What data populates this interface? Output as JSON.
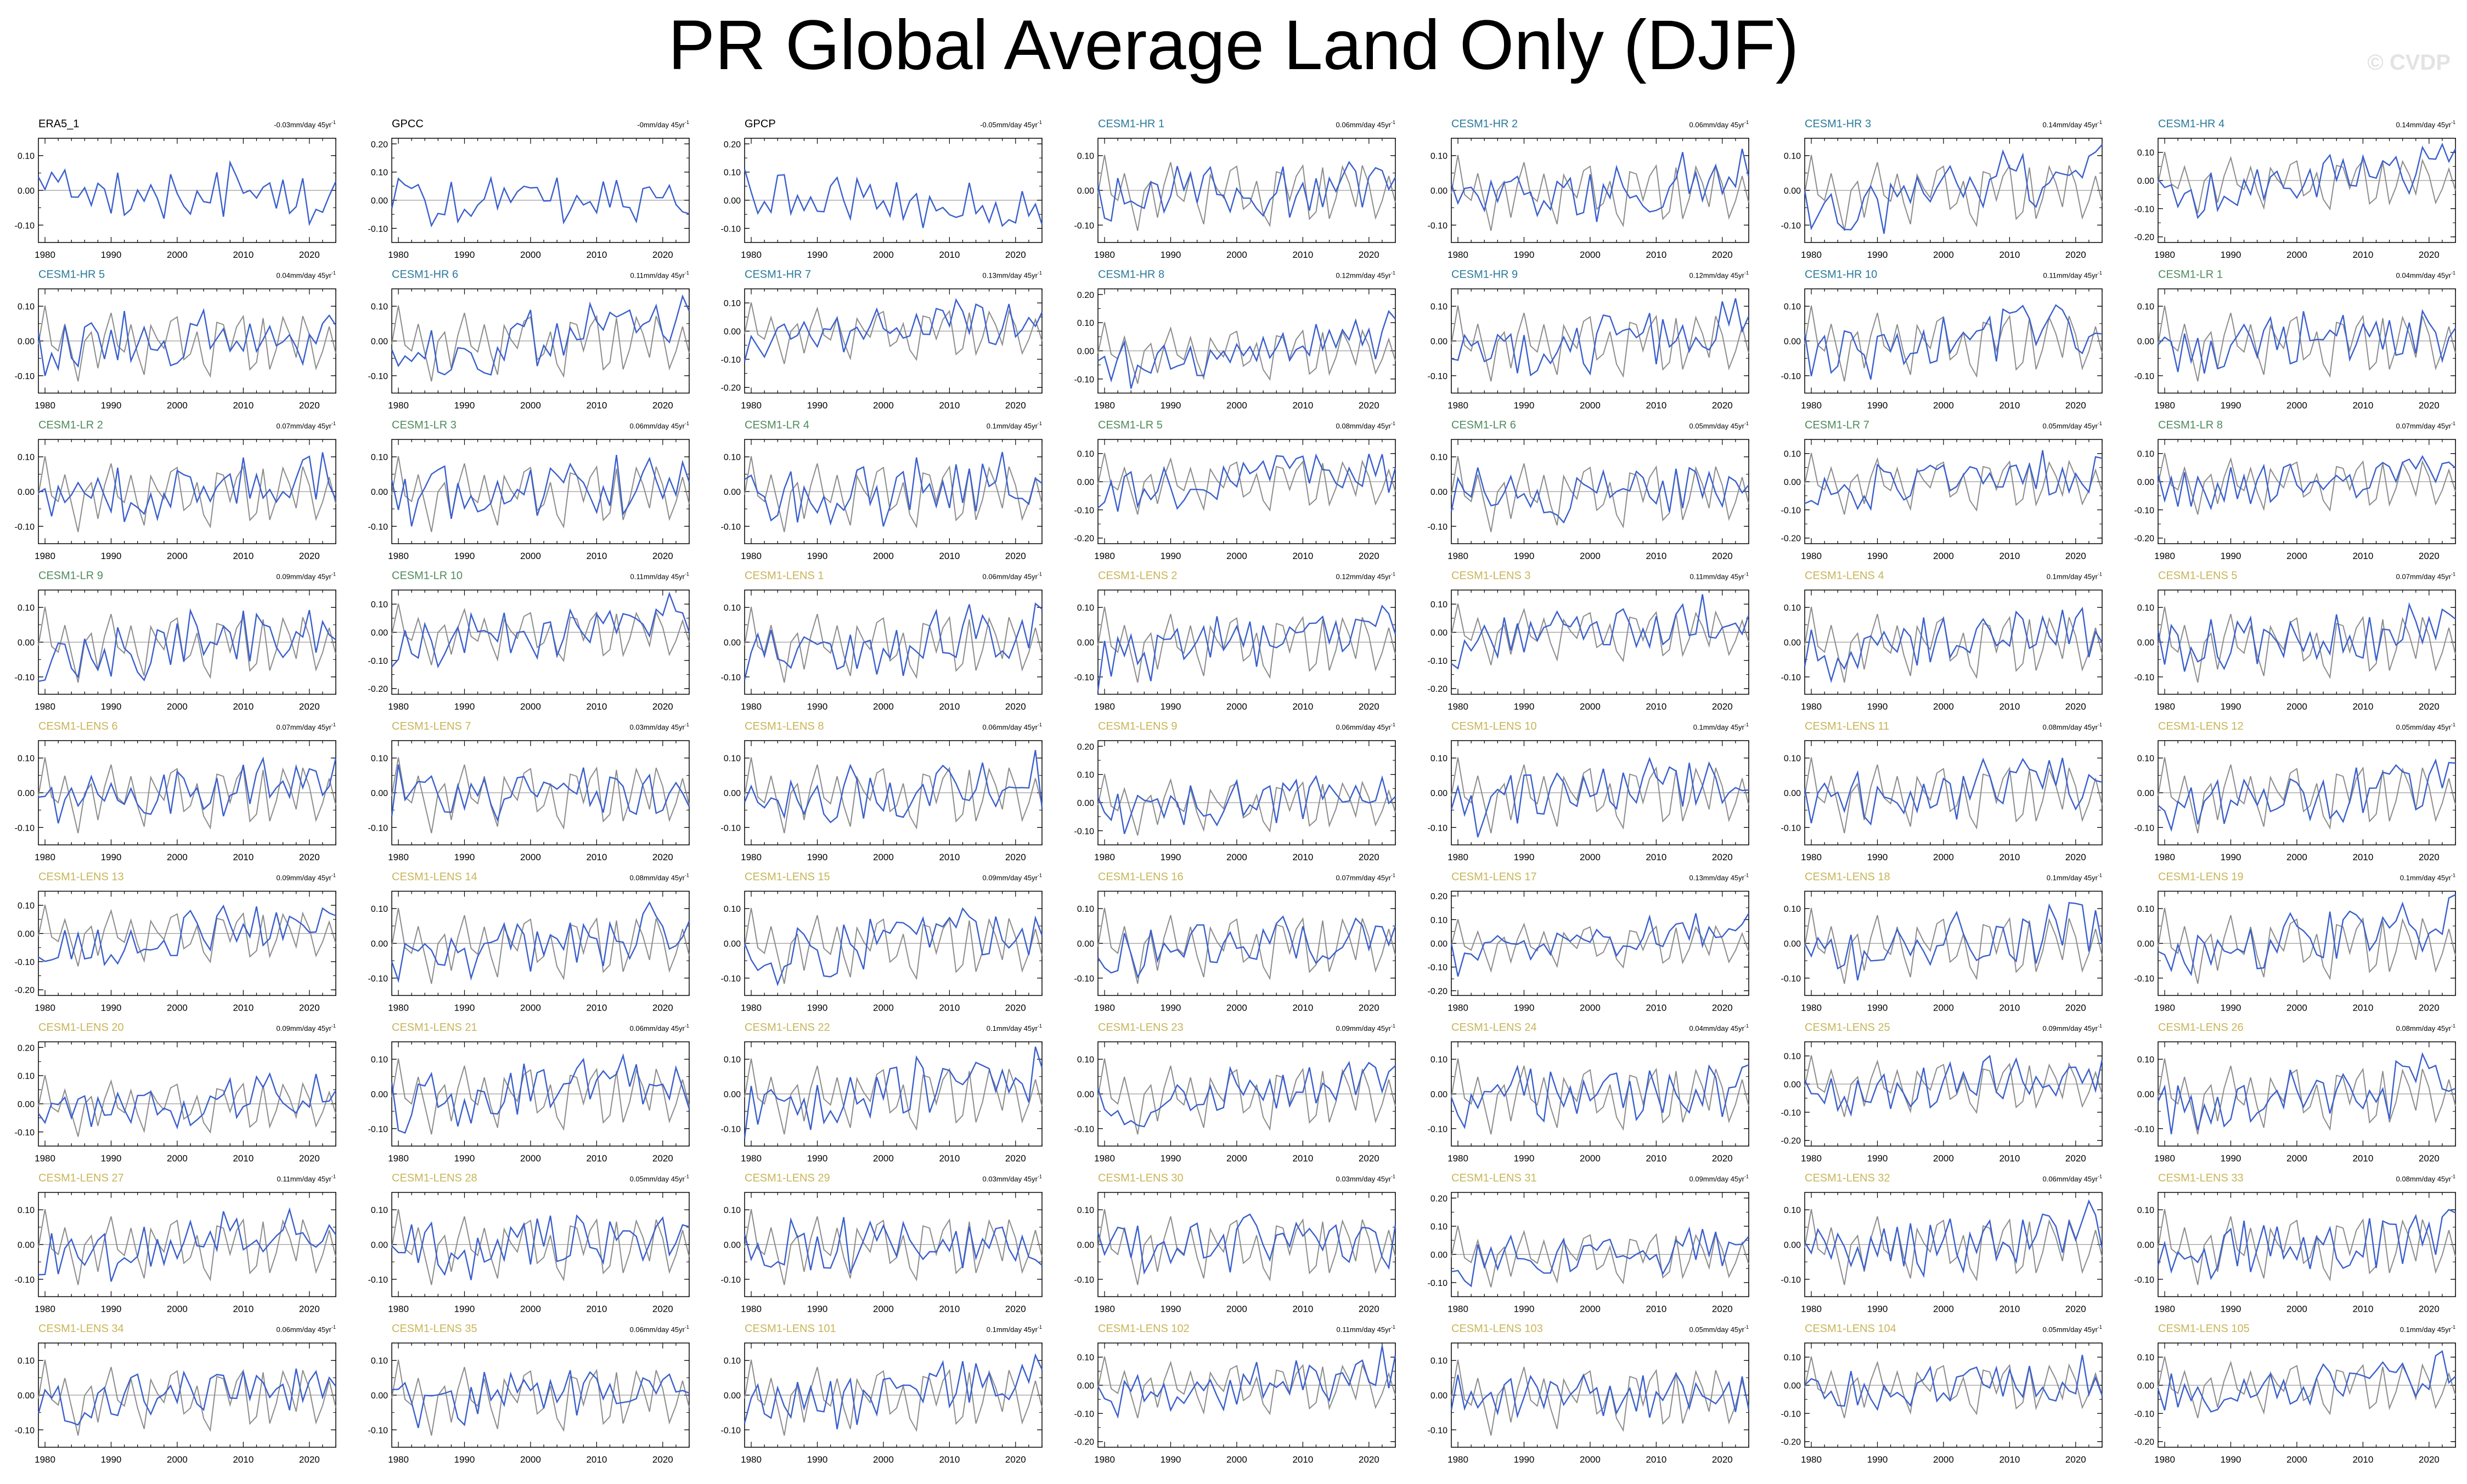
{
  "title": "PR Global Average Land Only (DJF)",
  "watermark": "© CVDP",
  "colors": {
    "obs_line": "#3a5fcd",
    "ref_line": "#8c8c8c",
    "zero_line": "#9a9a9a",
    "label_obs": "#000000",
    "label_hr": "#2a7a9a",
    "label_lr": "#4f8a5b",
    "label_lens": "#c8b458"
  },
  "chart_data": {
    "type": "line",
    "x_range": [
      1979,
      2024
    ],
    "x_ticks": [
      1980,
      1990,
      2000,
      2010,
      2020
    ],
    "grid": false,
    "series_colors": {
      "model": "#3a5fcd",
      "observations": "#8c8c8c"
    },
    "panels": [
      {
        "name": "ERA5_1",
        "group": "obs",
        "trend": "-0.03mm/day 45yr",
        "ylim": [
          -0.15,
          0.15
        ],
        "yticks": [
          "0.10",
          "0.00",
          "-0.10"
        ]
      },
      {
        "name": "GPCC",
        "group": "obs",
        "trend": "-0mm/day 45yr",
        "ylim": [
          -0.15,
          0.22
        ],
        "yticks": [
          "0.20",
          "0.10",
          "0.00",
          "-0.10"
        ]
      },
      {
        "name": "GPCP",
        "group": "obs",
        "trend": "-0.05mm/day 45yr",
        "ylim": [
          -0.15,
          0.22
        ],
        "yticks": [
          "0.20",
          "0.10",
          "0.00",
          "-0.10"
        ]
      },
      {
        "name": "CESM1-HR 1",
        "group": "hr",
        "trend": "0.06mm/day 45yr",
        "ylim": [
          -0.15,
          0.15
        ],
        "yticks": [
          "0.10",
          "0.00",
          "-0.10"
        ]
      },
      {
        "name": "CESM1-HR 2",
        "group": "hr",
        "trend": "0.06mm/day 45yr",
        "ylim": [
          -0.15,
          0.15
        ],
        "yticks": [
          "0.10",
          "0.00",
          "-0.10"
        ]
      },
      {
        "name": "CESM1-HR 3",
        "group": "hr",
        "trend": "0.14mm/day 45yr",
        "ylim": [
          -0.15,
          0.15
        ],
        "yticks": [
          "0.10",
          "0.00",
          "-0.10"
        ]
      },
      {
        "name": "CESM1-HR 4",
        "group": "hr",
        "trend": "0.14mm/day 45yr",
        "ylim": [
          -0.22,
          0.15
        ],
        "yticks": [
          "0.10",
          "0.00",
          "-0.10",
          "-0.20"
        ]
      },
      {
        "name": "CESM1-HR 5",
        "group": "hr",
        "trend": "0.04mm/day 45yr",
        "ylim": [
          -0.15,
          0.15
        ],
        "yticks": [
          "0.10",
          "0.00",
          "-0.10"
        ]
      },
      {
        "name": "CESM1-HR 6",
        "group": "hr",
        "trend": "0.11mm/day 45yr",
        "ylim": [
          -0.15,
          0.15
        ],
        "yticks": [
          "0.10",
          "0.00",
          "-0.10"
        ]
      },
      {
        "name": "CESM1-HR 7",
        "group": "hr",
        "trend": "0.13mm/day 45yr",
        "ylim": [
          -0.22,
          0.15
        ],
        "yticks": [
          "0.10",
          "0.00",
          "-0.10",
          "-0.20"
        ]
      },
      {
        "name": "CESM1-HR 8",
        "group": "hr",
        "trend": "0.12mm/day 45yr",
        "ylim": [
          -0.15,
          0.22
        ],
        "yticks": [
          "0.20",
          "0.10",
          "0.00",
          "-0.10"
        ]
      },
      {
        "name": "CESM1-HR 9",
        "group": "hr",
        "trend": "0.12mm/day 45yr",
        "ylim": [
          -0.15,
          0.15
        ],
        "yticks": [
          "0.10",
          "0.00",
          "-0.10"
        ]
      },
      {
        "name": "CESM1-HR 10",
        "group": "hr",
        "trend": "0.11mm/day 45yr",
        "ylim": [
          -0.15,
          0.15
        ],
        "yticks": [
          "0.10",
          "0.00",
          "-0.10"
        ]
      },
      {
        "name": "CESM1-LR 1",
        "group": "lr",
        "trend": "0.04mm/day 45yr",
        "ylim": [
          -0.15,
          0.15
        ],
        "yticks": [
          "0.10",
          "0.00",
          "-0.10"
        ]
      },
      {
        "name": "CESM1-LR 2",
        "group": "lr",
        "trend": "0.07mm/day 45yr",
        "ylim": [
          -0.15,
          0.15
        ],
        "yticks": [
          "0.10",
          "0.00",
          "-0.10"
        ]
      },
      {
        "name": "CESM1-LR 3",
        "group": "lr",
        "trend": "0.06mm/day 45yr",
        "ylim": [
          -0.15,
          0.15
        ],
        "yticks": [
          "0.10",
          "0.00",
          "-0.10"
        ]
      },
      {
        "name": "CESM1-LR 4",
        "group": "lr",
        "trend": "0.1mm/day 45yr",
        "ylim": [
          -0.15,
          0.15
        ],
        "yticks": [
          "0.10",
          "0.00",
          "-0.10"
        ]
      },
      {
        "name": "CESM1-LR 5",
        "group": "lr",
        "trend": "0.08mm/day 45yr",
        "ylim": [
          -0.22,
          0.15
        ],
        "yticks": [
          "0.10",
          "0.00",
          "-0.10",
          "-0.20"
        ]
      },
      {
        "name": "CESM1-LR 6",
        "group": "lr",
        "trend": "0.05mm/day 45yr",
        "ylim": [
          -0.15,
          0.15
        ],
        "yticks": [
          "0.10",
          "0.00",
          "-0.10"
        ]
      },
      {
        "name": "CESM1-LR 7",
        "group": "lr",
        "trend": "0.05mm/day 45yr",
        "ylim": [
          -0.22,
          0.15
        ],
        "yticks": [
          "0.10",
          "0.00",
          "-0.10",
          "-0.20"
        ]
      },
      {
        "name": "CESM1-LR 8",
        "group": "lr",
        "trend": "0.07mm/day 45yr",
        "ylim": [
          -0.22,
          0.15
        ],
        "yticks": [
          "0.10",
          "0.00",
          "-0.10",
          "-0.20"
        ]
      },
      {
        "name": "CESM1-LR 9",
        "group": "lr",
        "trend": "0.09mm/day 45yr",
        "ylim": [
          -0.15,
          0.15
        ],
        "yticks": [
          "0.10",
          "0.00",
          "-0.10"
        ]
      },
      {
        "name": "CESM1-LR 10",
        "group": "lr",
        "trend": "0.11mm/day 45yr",
        "ylim": [
          -0.22,
          0.15
        ],
        "yticks": [
          "0.10",
          "0.00",
          "-0.10",
          "-0.20"
        ]
      },
      {
        "name": "CESM1-LENS 1",
        "group": "lens",
        "trend": "0.06mm/day 45yr",
        "ylim": [
          -0.15,
          0.15
        ],
        "yticks": [
          "0.10",
          "0.00",
          "-0.10"
        ]
      },
      {
        "name": "CESM1-LENS 2",
        "group": "lens",
        "trend": "0.12mm/day 45yr",
        "ylim": [
          -0.15,
          0.15
        ],
        "yticks": [
          "0.10",
          "0.00",
          "-0.10"
        ]
      },
      {
        "name": "CESM1-LENS 3",
        "group": "lens",
        "trend": "0.11mm/day 45yr",
        "ylim": [
          -0.22,
          0.15
        ],
        "yticks": [
          "0.10",
          "0.00",
          "-0.10",
          "-0.20"
        ]
      },
      {
        "name": "CESM1-LENS 4",
        "group": "lens",
        "trend": "0.1mm/day 45yr",
        "ylim": [
          -0.15,
          0.15
        ],
        "yticks": [
          "0.10",
          "0.00",
          "-0.10"
        ]
      },
      {
        "name": "CESM1-LENS 5",
        "group": "lens",
        "trend": "0.07mm/day 45yr",
        "ylim": [
          -0.15,
          0.15
        ],
        "yticks": [
          "0.10",
          "0.00",
          "-0.10"
        ]
      },
      {
        "name": "CESM1-LENS 6",
        "group": "lens",
        "trend": "0.07mm/day 45yr",
        "ylim": [
          -0.15,
          0.15
        ],
        "yticks": [
          "0.10",
          "0.00",
          "-0.10"
        ]
      },
      {
        "name": "CESM1-LENS 7",
        "group": "lens",
        "trend": "0.03mm/day 45yr",
        "ylim": [
          -0.15,
          0.15
        ],
        "yticks": [
          "0.10",
          "0.00",
          "-0.10"
        ]
      },
      {
        "name": "CESM1-LENS 8",
        "group": "lens",
        "trend": "0.06mm/day 45yr",
        "ylim": [
          -0.15,
          0.15
        ],
        "yticks": [
          "0.10",
          "0.00",
          "-0.10"
        ]
      },
      {
        "name": "CESM1-LENS 9",
        "group": "lens",
        "trend": "0.06mm/day 45yr",
        "ylim": [
          -0.15,
          0.22
        ],
        "yticks": [
          "0.20",
          "0.10",
          "0.00",
          "-0.10"
        ]
      },
      {
        "name": "CESM1-LENS 10",
        "group": "lens",
        "trend": "0.1mm/day 45yr",
        "ylim": [
          -0.15,
          0.15
        ],
        "yticks": [
          "0.10",
          "0.00",
          "-0.10"
        ]
      },
      {
        "name": "CESM1-LENS 11",
        "group": "lens",
        "trend": "0.08mm/day 45yr",
        "ylim": [
          -0.15,
          0.15
        ],
        "yticks": [
          "0.10",
          "0.00",
          "-0.10"
        ]
      },
      {
        "name": "CESM1-LENS 12",
        "group": "lens",
        "trend": "0.05mm/day 45yr",
        "ylim": [
          -0.15,
          0.15
        ],
        "yticks": [
          "0.10",
          "0.00",
          "-0.10"
        ]
      },
      {
        "name": "CESM1-LENS 13",
        "group": "lens",
        "trend": "0.09mm/day 45yr",
        "ylim": [
          -0.22,
          0.15
        ],
        "yticks": [
          "0.10",
          "0.00",
          "-0.10",
          "-0.20"
        ]
      },
      {
        "name": "CESM1-LENS 14",
        "group": "lens",
        "trend": "0.08mm/day 45yr",
        "ylim": [
          -0.15,
          0.15
        ],
        "yticks": [
          "0.10",
          "0.00",
          "-0.10"
        ]
      },
      {
        "name": "CESM1-LENS 15",
        "group": "lens",
        "trend": "0.09mm/day 45yr",
        "ylim": [
          -0.15,
          0.15
        ],
        "yticks": [
          "0.10",
          "0.00",
          "-0.10"
        ]
      },
      {
        "name": "CESM1-LENS 16",
        "group": "lens",
        "trend": "0.07mm/day 45yr",
        "ylim": [
          -0.15,
          0.15
        ],
        "yticks": [
          "0.10",
          "0.00",
          "-0.10"
        ]
      },
      {
        "name": "CESM1-LENS 17",
        "group": "lens",
        "trend": "0.13mm/day 45yr",
        "ylim": [
          -0.22,
          0.22
        ],
        "yticks": [
          "0.20",
          "0.10",
          "0.00",
          "-0.10",
          "-0.20"
        ]
      },
      {
        "name": "CESM1-LENS 18",
        "group": "lens",
        "trend": "0.1mm/day 45yr",
        "ylim": [
          -0.15,
          0.15
        ],
        "yticks": [
          "0.10",
          "0.00",
          "-0.10"
        ]
      },
      {
        "name": "CESM1-LENS 19",
        "group": "lens",
        "trend": "0.1mm/day 45yr",
        "ylim": [
          -0.15,
          0.15
        ],
        "yticks": [
          "0.10",
          "0.00",
          "-0.10"
        ]
      },
      {
        "name": "CESM1-LENS 20",
        "group": "lens",
        "trend": "0.09mm/day 45yr",
        "ylim": [
          -0.15,
          0.22
        ],
        "yticks": [
          "0.20",
          "0.10",
          "0.00",
          "-0.10"
        ]
      },
      {
        "name": "CESM1-LENS 21",
        "group": "lens",
        "trend": "0.06mm/day 45yr",
        "ylim": [
          -0.15,
          0.15
        ],
        "yticks": [
          "0.10",
          "0.00",
          "-0.10"
        ]
      },
      {
        "name": "CESM1-LENS 22",
        "group": "lens",
        "trend": "0.1mm/day 45yr",
        "ylim": [
          -0.15,
          0.15
        ],
        "yticks": [
          "0.10",
          "0.00",
          "-0.10"
        ]
      },
      {
        "name": "CESM1-LENS 23",
        "group": "lens",
        "trend": "0.09mm/day 45yr",
        "ylim": [
          -0.15,
          0.15
        ],
        "yticks": [
          "0.10",
          "0.00",
          "-0.10"
        ]
      },
      {
        "name": "CESM1-LENS 24",
        "group": "lens",
        "trend": "0.04mm/day 45yr",
        "ylim": [
          -0.15,
          0.15
        ],
        "yticks": [
          "0.10",
          "0.00",
          "-0.10"
        ]
      },
      {
        "name": "CESM1-LENS 25",
        "group": "lens",
        "trend": "0.09mm/day 45yr",
        "ylim": [
          -0.22,
          0.15
        ],
        "yticks": [
          "0.10",
          "0.00",
          "-0.10",
          "-0.20"
        ]
      },
      {
        "name": "CESM1-LENS 26",
        "group": "lens",
        "trend": "0.08mm/day 45yr",
        "ylim": [
          -0.15,
          0.15
        ],
        "yticks": [
          "0.10",
          "0.00",
          "-0.10"
        ]
      },
      {
        "name": "CESM1-LENS 27",
        "group": "lens",
        "trend": "0.11mm/day 45yr",
        "ylim": [
          -0.15,
          0.15
        ],
        "yticks": [
          "0.10",
          "0.00",
          "-0.10"
        ]
      },
      {
        "name": "CESM1-LENS 28",
        "group": "lens",
        "trend": "0.05mm/day 45yr",
        "ylim": [
          -0.15,
          0.15
        ],
        "yticks": [
          "0.10",
          "0.00",
          "-0.10"
        ]
      },
      {
        "name": "CESM1-LENS 29",
        "group": "lens",
        "trend": "0.03mm/day 45yr",
        "ylim": [
          -0.15,
          0.15
        ],
        "yticks": [
          "0.10",
          "0.00",
          "-0.10"
        ]
      },
      {
        "name": "CESM1-LENS 30",
        "group": "lens",
        "trend": "0.03mm/day 45yr",
        "ylim": [
          -0.15,
          0.15
        ],
        "yticks": [
          "0.10",
          "0.00",
          "-0.10"
        ]
      },
      {
        "name": "CESM1-LENS 31",
        "group": "lens",
        "trend": "0.09mm/day 45yr",
        "ylim": [
          -0.15,
          0.22
        ],
        "yticks": [
          "0.20",
          "0.10",
          "0.00",
          "-0.10"
        ]
      },
      {
        "name": "CESM1-LENS 32",
        "group": "lens",
        "trend": "0.06mm/day 45yr",
        "ylim": [
          -0.15,
          0.15
        ],
        "yticks": [
          "0.10",
          "0.00",
          "-0.10"
        ]
      },
      {
        "name": "CESM1-LENS 33",
        "group": "lens",
        "trend": "0.08mm/day 45yr",
        "ylim": [
          -0.15,
          0.15
        ],
        "yticks": [
          "0.10",
          "0.00",
          "-0.10"
        ]
      },
      {
        "name": "CESM1-LENS 34",
        "group": "lens",
        "trend": "0.06mm/day 45yr",
        "ylim": [
          -0.15,
          0.15
        ],
        "yticks": [
          "0.10",
          "0.00",
          "-0.10"
        ]
      },
      {
        "name": "CESM1-LENS 35",
        "group": "lens",
        "trend": "0.06mm/day 45yr",
        "ylim": [
          -0.15,
          0.15
        ],
        "yticks": [
          "0.10",
          "0.00",
          "-0.10"
        ]
      },
      {
        "name": "CESM1-LENS 101",
        "group": "lens",
        "trend": "0.1mm/day 45yr",
        "ylim": [
          -0.15,
          0.15
        ],
        "yticks": [
          "0.10",
          "0.00",
          "-0.10"
        ]
      },
      {
        "name": "CESM1-LENS 102",
        "group": "lens",
        "trend": "0.11mm/day 45yr",
        "ylim": [
          -0.22,
          0.15
        ],
        "yticks": [
          "0.10",
          "0.00",
          "-0.10",
          "-0.20"
        ]
      },
      {
        "name": "CESM1-LENS 103",
        "group": "lens",
        "trend": "0.05mm/day 45yr",
        "ylim": [
          -0.15,
          0.15
        ],
        "yticks": [
          "0.10",
          "0.00",
          "-0.10"
        ]
      },
      {
        "name": "CESM1-LENS 104",
        "group": "lens",
        "trend": "0.05mm/day 45yr",
        "ylim": [
          -0.22,
          0.15
        ],
        "yticks": [
          "0.10",
          "0.00",
          "-0.10",
          "-0.20"
        ]
      },
      {
        "name": "CESM1-LENS 105",
        "group": "lens",
        "trend": "0.1mm/day 45yr",
        "ylim": [
          -0.22,
          0.15
        ],
        "yticks": [
          "0.10",
          "0.00",
          "-0.10",
          "-0.20"
        ]
      }
    ]
  }
}
